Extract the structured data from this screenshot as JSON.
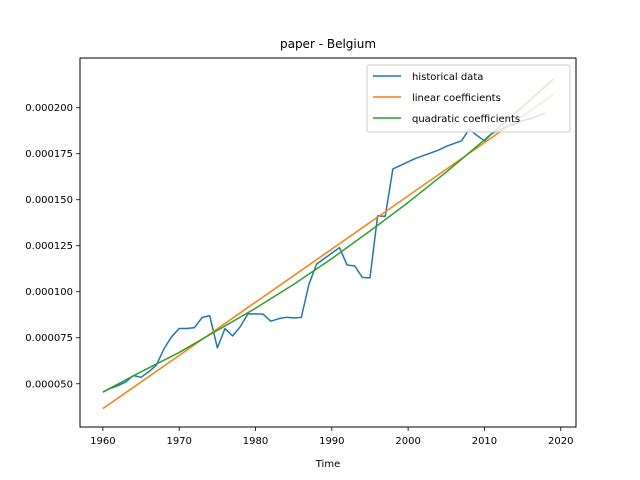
{
  "chart_data": {
    "type": "line",
    "title": "paper - Belgium",
    "xlabel": "Time",
    "ylabel": "",
    "xlim": [
      1957,
      2022
    ],
    "ylim": [
      2.65e-05,
      0.000227
    ],
    "grid": false,
    "legend_position": "top-right",
    "xticks": [
      {
        "value": 1960,
        "label": "1960"
      },
      {
        "value": 1970,
        "label": "1970"
      },
      {
        "value": 1980,
        "label": "1980"
      },
      {
        "value": 1990,
        "label": "1990"
      },
      {
        "value": 2000,
        "label": "2000"
      },
      {
        "value": 2010,
        "label": "2010"
      },
      {
        "value": 2020,
        "label": "2020"
      }
    ],
    "yticks": [
      {
        "value": 5e-05,
        "label": "0.000050"
      },
      {
        "value": 7.5e-05,
        "label": "0.000075"
      },
      {
        "value": 0.0001,
        "label": "0.000100"
      },
      {
        "value": 0.000125,
        "label": "0.000125"
      },
      {
        "value": 0.00015,
        "label": "0.000150"
      },
      {
        "value": 0.000175,
        "label": "0.000175"
      },
      {
        "value": 0.0002,
        "label": "0.000200"
      }
    ],
    "series": [
      {
        "name": "historical data",
        "color": "#1f77b4",
        "x": [
          1960,
          1961,
          1962,
          1963,
          1964,
          1965,
          1966,
          1967,
          1968,
          1969,
          1970,
          1971,
          1972,
          1973,
          1974,
          1975,
          1976,
          1977,
          1978,
          1979,
          1980,
          1981,
          1982,
          1983,
          1984,
          1985,
          1986,
          1987,
          1988,
          1989,
          1990,
          1991,
          1992,
          1993,
          1994,
          1995,
          1996,
          1997,
          1998,
          1999,
          2000,
          2001,
          2002,
          2003,
          2004,
          2005,
          2006,
          2007,
          2008,
          2009,
          2010,
          2011,
          2012,
          2013,
          2014,
          2015,
          2016,
          2017,
          2018
        ],
        "y": [
          4.55e-05,
          4.75e-05,
          4.9e-05,
          5.1e-05,
          5.45e-05,
          5.35e-05,
          5.65e-05,
          6e-05,
          6.9e-05,
          7.55e-05,
          8e-05,
          8e-05,
          8.05e-05,
          8.6e-05,
          8.7e-05,
          6.95e-05,
          8e-05,
          7.6e-05,
          8.1e-05,
          8.8e-05,
          8.8e-05,
          8.78e-05,
          8.4e-05,
          8.53e-05,
          8.61e-05,
          8.58e-05,
          8.6e-05,
          0.000104,
          0.000115,
          0.000118,
          0.000121,
          0.000124,
          0.0001145,
          0.000114,
          0.0001078,
          0.0001075,
          0.0001412,
          0.000141,
          0.0001667,
          0.0001686,
          0.0001706,
          0.0001725,
          0.000174,
          0.0001755,
          0.000177,
          0.000179,
          0.0001805,
          0.000182,
          0.0001883,
          0.000185,
          0.000182,
          0.000186,
          0.000188,
          0.00019,
          0.000191,
          0.000193,
          0.000194,
          0.0001955,
          0.000197
        ]
      },
      {
        "name": "linear coefficients",
        "color": "#ff7f0e",
        "x": [
          1960,
          2019
        ],
        "y": [
          3.65e-05,
          0.000207
        ]
      },
      {
        "name": "quadratic coefficients",
        "color": "#2ca02c",
        "x": [
          1960,
          1965,
          1970,
          1975,
          1980,
          1985,
          1990,
          1995,
          2000,
          2005,
          2010,
          2015,
          2019
        ],
        "y": [
          4.55e-05,
          5.65e-05,
          6.7e-05,
          7.9e-05,
          9.1e-05,
          0.000104,
          0.000118,
          0.000133,
          0.0001485,
          0.000165,
          0.0001825,
          0.0002005,
          0.0002155
        ]
      }
    ]
  }
}
